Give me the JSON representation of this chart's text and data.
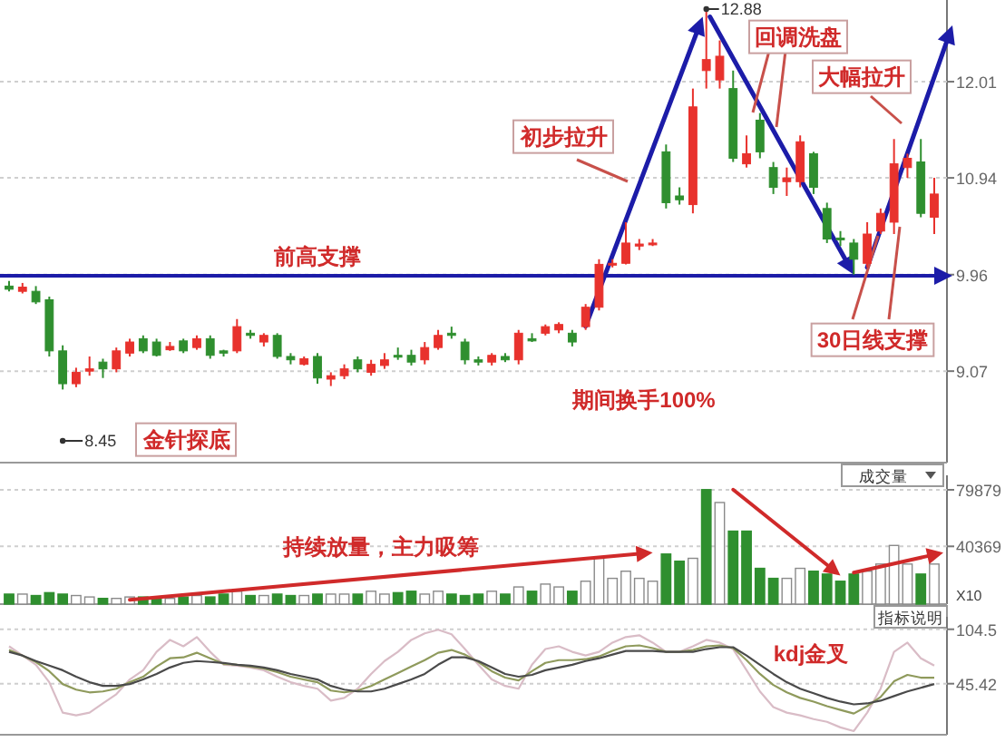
{
  "chart_data": [
    {
      "type": "candlestick",
      "categories": [
        null,
        null,
        null,
        null,
        null,
        null,
        null,
        null,
        null,
        null,
        null,
        null,
        null,
        null,
        null,
        null,
        null,
        null,
        null,
        null,
        null,
        null,
        null,
        null,
        null,
        null,
        null,
        null,
        null,
        null,
        null,
        null,
        null,
        null,
        null,
        null,
        null,
        null,
        null,
        null,
        null,
        null,
        null,
        null,
        null,
        null,
        null,
        null,
        null,
        null,
        null,
        null,
        null,
        null,
        null,
        null,
        null,
        null,
        null,
        null,
        null,
        null,
        null,
        null,
        null,
        null,
        null,
        null,
        null,
        null
      ],
      "ohlc": [
        [
          9.85,
          9.9,
          9.8,
          9.82
        ],
        [
          9.8,
          9.88,
          9.78,
          9.84
        ],
        [
          9.8,
          9.85,
          9.68,
          9.7
        ],
        [
          9.72,
          9.75,
          9.2,
          9.25
        ],
        [
          9.25,
          9.3,
          8.91,
          8.96
        ],
        [
          8.96,
          9.1,
          8.93,
          9.06
        ],
        [
          9.07,
          9.2,
          9.03,
          9.09
        ],
        [
          9.15,
          9.18,
          9.01,
          9.09
        ],
        [
          9.09,
          9.28,
          9.06,
          9.25
        ],
        [
          9.23,
          9.36,
          9.2,
          9.33
        ],
        [
          9.36,
          9.39,
          9.23,
          9.25
        ],
        [
          9.33,
          9.36,
          9.2,
          9.21
        ],
        [
          9.26,
          9.33,
          9.25,
          9.29
        ],
        [
          9.34,
          9.36,
          9.23,
          9.25
        ],
        [
          9.28,
          9.39,
          9.26,
          9.36
        ],
        [
          9.36,
          9.39,
          9.18,
          9.21
        ],
        [
          9.25,
          9.26,
          9.2,
          9.23
        ],
        [
          9.25,
          9.54,
          9.23,
          9.47
        ],
        [
          9.41,
          9.44,
          9.36,
          9.39
        ],
        [
          9.33,
          9.41,
          9.29,
          9.39
        ],
        [
          9.39,
          9.41,
          9.18,
          9.2
        ],
        [
          9.2,
          9.23,
          9.13,
          9.17
        ],
        [
          9.13,
          9.2,
          9.12,
          9.18
        ],
        [
          9.2,
          9.23,
          8.96,
          9.01
        ],
        [
          9.0,
          9.06,
          8.94,
          9.03
        ],
        [
          9.03,
          9.13,
          9.0,
          9.09
        ],
        [
          9.17,
          9.2,
          9.06,
          9.09
        ],
        [
          9.06,
          9.17,
          9.03,
          9.13
        ],
        [
          9.12,
          9.23,
          9.09,
          9.17
        ],
        [
          9.21,
          9.28,
          9.17,
          9.2
        ],
        [
          9.21,
          9.26,
          9.12,
          9.15
        ],
        [
          9.17,
          9.33,
          9.13,
          9.28
        ],
        [
          9.28,
          9.44,
          9.26,
          9.39
        ],
        [
          9.41,
          9.47,
          9.36,
          9.39
        ],
        [
          9.33,
          9.36,
          9.13,
          9.17
        ],
        [
          9.17,
          9.2,
          9.12,
          9.15
        ],
        [
          9.15,
          9.23,
          9.12,
          9.21
        ],
        [
          9.2,
          9.23,
          9.15,
          9.17
        ],
        [
          9.17,
          9.44,
          9.13,
          9.41
        ],
        [
          9.36,
          9.41,
          9.33,
          9.34
        ],
        [
          9.41,
          9.49,
          9.39,
          9.47
        ],
        [
          9.44,
          9.51,
          9.41,
          9.49
        ],
        [
          9.41,
          9.44,
          9.29,
          9.33
        ],
        [
          9.47,
          9.68,
          9.44,
          9.65
        ],
        [
          9.65,
          10.11,
          9.62,
          10.06
        ],
        [
          10.06,
          10.11,
          10.03,
          10.07
        ],
        [
          10.07,
          10.48,
          10.06,
          10.27
        ],
        [
          10.24,
          10.31,
          10.2,
          10.26
        ],
        [
          10.26,
          10.31,
          10.24,
          10.27
        ],
        [
          11.22,
          11.3,
          10.62,
          10.68
        ],
        [
          10.75,
          10.84,
          10.66,
          10.71
        ],
        [
          10.66,
          11.93,
          10.57,
          11.72
        ],
        [
          12.14,
          12.88,
          11.93,
          12.27
        ],
        [
          12.03,
          12.5,
          11.93,
          12.31
        ],
        [
          11.93,
          12.14,
          11.11,
          11.15
        ],
        [
          11.09,
          11.4,
          11.05,
          11.2
        ],
        [
          11.57,
          11.65,
          11.15,
          11.22
        ],
        [
          11.05,
          11.11,
          10.77,
          10.84
        ],
        [
          10.9,
          11.05,
          10.75,
          10.94
        ],
        [
          10.9,
          11.4,
          10.84,
          11.33
        ],
        [
          11.2,
          11.22,
          10.77,
          10.84
        ],
        [
          10.62,
          10.68,
          10.27,
          10.31
        ],
        [
          10.32,
          10.39,
          10.24,
          10.31
        ],
        [
          10.27,
          10.31,
          9.96,
          10.11
        ],
        [
          10.07,
          10.48,
          10.03,
          10.36
        ],
        [
          10.39,
          10.62,
          10.36,
          10.57
        ],
        [
          10.48,
          11.36,
          10.36,
          11.09
        ],
        [
          11.05,
          11.2,
          10.94,
          11.15
        ],
        [
          11.11,
          11.36,
          10.53,
          10.57
        ],
        [
          10.53,
          10.94,
          10.36,
          10.77
        ]
      ],
      "colors": [
        "#2f8f2f",
        "#e8322d",
        "#2f8f2f",
        "#2f8f2f",
        "#2f8f2f",
        "#e8322d",
        "#e8322d",
        "#2f8f2f",
        "#e8322d",
        "#e8322d",
        "#2f8f2f",
        "#2f8f2f",
        "#e8322d",
        "#2f8f2f",
        "#e8322d",
        "#2f8f2f",
        "#2f8f2f",
        "#e8322d",
        "#2f8f2f",
        "#e8322d",
        "#2f8f2f",
        "#2f8f2f",
        "#e8322d",
        "#2f8f2f",
        "#e8322d",
        "#e8322d",
        "#2f8f2f",
        "#e8322d",
        "#e8322d",
        "#2f8f2f",
        "#2f8f2f",
        "#e8322d",
        "#e8322d",
        "#2f8f2f",
        "#2f8f2f",
        "#2f8f2f",
        "#e8322d",
        "#2f8f2f",
        "#e8322d",
        "#2f8f2f",
        "#e8322d",
        "#e8322d",
        "#2f8f2f",
        "#e8322d",
        "#e8322d",
        "#e8322d",
        "#e8322d",
        "#e8322d",
        "#e8322d",
        "#2f8f2f",
        "#2f8f2f",
        "#e8322d",
        "#e8322d",
        "#e8322d",
        "#2f8f2f",
        "#e8322d",
        "#2f8f2f",
        "#2f8f2f",
        "#e8322d",
        "#e8322d",
        "#2f8f2f",
        "#2f8f2f",
        "#2f8f2f",
        "#2f8f2f",
        "#e8322d",
        "#e8322d",
        "#e8322d",
        "#e8322d",
        "#2f8f2f",
        "#e8322d"
      ],
      "log": true,
      "ylim": [
        8.3,
        13.0
      ],
      "yticks": [
        9.07,
        9.96,
        10.94,
        12.01
      ],
      "grid": "y",
      "ref_lines": [
        {
          "axis": "y",
          "value": 9.95,
          "label": "前高支撑",
          "color": "#1c1ca8"
        }
      ],
      "annotations": [
        "12.88",
        "8.45",
        "金针探底",
        "初步拉升",
        "回调洗盘",
        "大幅拉升",
        "30日线支撑",
        "期间换手100%"
      ]
    },
    {
      "type": "bar",
      "categories": [
        null,
        null,
        null,
        null,
        null,
        null,
        null,
        null,
        null,
        null,
        null,
        null,
        null,
        null,
        null,
        null,
        null,
        null,
        null,
        null,
        null,
        null,
        null,
        null,
        null,
        null,
        null,
        null,
        null,
        null,
        null,
        null,
        null,
        null,
        null,
        null,
        null,
        null,
        null,
        null,
        null,
        null,
        null,
        null,
        null,
        null,
        null,
        null,
        null,
        null,
        null,
        null,
        null,
        null,
        null,
        null,
        null,
        null,
        null,
        null,
        null,
        null,
        null,
        null,
        null,
        null,
        null,
        null,
        null,
        null
      ],
      "values": [
        7000,
        7000,
        6000,
        8000,
        7000,
        6000,
        5000,
        4000,
        4000,
        5000,
        5000,
        4000,
        4000,
        5000,
        6000,
        5000,
        7000,
        9000,
        6000,
        6000,
        7000,
        6000,
        6000,
        7000,
        7000,
        7000,
        7000,
        9000,
        7000,
        8000,
        9000,
        7000,
        9000,
        7000,
        6000,
        7000,
        9000,
        7000,
        12000,
        9000,
        14000,
        12000,
        9000,
        16000,
        32000,
        18000,
        23000,
        18000,
        16000,
        35000,
        30000,
        32000,
        80000,
        71000,
        51000,
        51000,
        25000,
        18000,
        18000,
        25000,
        23000,
        21000,
        16000,
        21000,
        23000,
        28000,
        41000,
        28000,
        21000,
        28000
      ],
      "colors": [
        "#2f8f2f",
        "#ffffff",
        "#2f8f2f",
        "#2f8f2f",
        "#2f8f2f",
        "#ffffff",
        "#ffffff",
        "#2f8f2f",
        "#ffffff",
        "#ffffff",
        "#2f8f2f",
        "#2f8f2f",
        "#ffffff",
        "#2f8f2f",
        "#ffffff",
        "#2f8f2f",
        "#2f8f2f",
        "#ffffff",
        "#2f8f2f",
        "#ffffff",
        "#2f8f2f",
        "#2f8f2f",
        "#ffffff",
        "#2f8f2f",
        "#ffffff",
        "#ffffff",
        "#2f8f2f",
        "#ffffff",
        "#ffffff",
        "#2f8f2f",
        "#2f8f2f",
        "#ffffff",
        "#ffffff",
        "#2f8f2f",
        "#2f8f2f",
        "#2f8f2f",
        "#ffffff",
        "#2f8f2f",
        "#ffffff",
        "#2f8f2f",
        "#ffffff",
        "#ffffff",
        "#2f8f2f",
        "#ffffff",
        "#ffffff",
        "#ffffff",
        "#ffffff",
        "#ffffff",
        "#ffffff",
        "#2f8f2f",
        "#2f8f2f",
        "#ffffff",
        "#2f8f2f",
        "#ffffff",
        "#2f8f2f",
        "#2f8f2f",
        "#2f8f2f",
        "#2f8f2f",
        "#ffffff",
        "#ffffff",
        "#2f8f2f",
        "#2f8f2f",
        "#2f8f2f",
        "#2f8f2f",
        "#ffffff",
        "#ffffff",
        "#ffffff",
        "#ffffff",
        "#2f8f2f",
        "#ffffff"
      ],
      "ylim": [
        0,
        90000
      ],
      "yticks": [
        40369,
        79879
      ],
      "grid": "y",
      "annotations": [
        "持续放量，主力吸筹",
        "成交量",
        "X10",
        "指标说明"
      ]
    },
    {
      "type": "line",
      "categories": [
        null,
        null,
        null,
        null,
        null,
        null,
        null,
        null,
        null,
        null,
        null,
        null,
        null,
        null,
        null,
        null,
        null,
        null,
        null,
        null,
        null,
        null,
        null,
        null,
        null,
        null,
        null,
        null,
        null,
        null,
        null,
        null,
        null,
        null,
        null,
        null,
        null,
        null,
        null,
        null,
        null,
        null,
        null,
        null,
        null,
        null,
        null,
        null,
        null,
        null,
        null,
        null,
        null,
        null,
        null,
        null,
        null,
        null,
        null,
        null,
        null,
        null,
        null,
        null,
        null,
        null,
        null,
        null,
        null,
        null
      ],
      "series": [
        {
          "color": "#d9bcc6",
          "values": [
            86,
            76,
            66,
            47,
            14,
            11,
            14,
            24,
            34,
            50,
            60,
            80,
            93,
            86,
            96,
            80,
            66,
            65,
            63,
            60,
            53,
            47,
            43,
            40,
            27,
            30,
            40,
            56,
            70,
            80,
            93,
            100,
            104,
            99,
            83,
            66,
            50,
            43,
            40,
            66,
            83,
            86,
            80,
            76,
            80,
            90,
            96,
            98,
            90,
            80,
            80,
            86,
            93,
            90,
            83,
            60,
            37,
            20,
            14,
            11,
            7,
            4,
            -2,
            -6,
            14,
            40,
            80,
            90,
            73,
            65
          ]
        },
        {
          "color": "#8f9a5c",
          "values": [
            82,
            76,
            69,
            59,
            45,
            39,
            36,
            37,
            40,
            47,
            53,
            64,
            73,
            74,
            79,
            73,
            67,
            66,
            64,
            62,
            58,
            53,
            50,
            47,
            38,
            36,
            38,
            43,
            50,
            57,
            64,
            71,
            79,
            82,
            77,
            69,
            59,
            52,
            49,
            59,
            68,
            71,
            71,
            72,
            75,
            81,
            86,
            87,
            84,
            80,
            80,
            82,
            86,
            87,
            84,
            71,
            56,
            44,
            36,
            30,
            26,
            21,
            17,
            13,
            21,
            31,
            48,
            55,
            52,
            52
          ]
        },
        {
          "color": "#4a4a4a",
          "values": [
            80,
            76,
            70,
            65,
            60,
            53,
            47,
            43,
            43,
            45,
            50,
            56,
            63,
            68,
            70,
            69,
            68,
            66,
            65,
            63,
            60,
            56,
            53,
            50,
            43,
            39,
            37,
            37,
            40,
            45,
            50,
            56,
            66,
            74,
            74,
            70,
            63,
            56,
            53,
            55,
            60,
            63,
            66,
            70,
            73,
            77,
            81,
            81,
            81,
            80,
            80,
            80,
            83,
            85,
            85,
            76,
            66,
            56,
            47,
            40,
            35,
            30,
            26,
            23,
            24,
            27,
            32,
            37,
            41,
            45
          ]
        }
      ],
      "ylim": [
        -10,
        118
      ],
      "yticks": [
        45.42,
        104.5
      ],
      "grid": "y",
      "annotations": [
        "kdj金叉"
      ]
    }
  ]
}
